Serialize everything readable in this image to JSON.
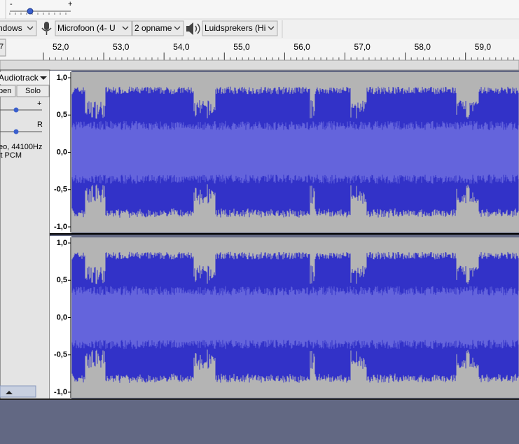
{
  "toolbar": {
    "slider_minus": "-",
    "slider_plus": "+",
    "host_dropdown": "ndows",
    "mic_dropdown": "Microfoon (4- U",
    "channels_dropdown": "2 opname",
    "speaker_dropdown": "Luidsprekers (Hi"
  },
  "ruler": {
    "left_label": "7",
    "ticks": [
      "52,0",
      "53,0",
      "54,0",
      "55,0",
      "56,0",
      "57,0",
      "58,0",
      "59,0"
    ]
  },
  "track": {
    "name": "Audiotrack",
    "mute": "pen",
    "solo": "Solo",
    "gain_plus": "+",
    "pan_right": "R",
    "info": [
      "eo, 44100Hz",
      "it PCM"
    ],
    "channels": [
      {
        "scale": [
          "1,0",
          "0,5",
          "0,0",
          "-0,5",
          "-1,0"
        ]
      },
      {
        "scale": [
          "1,0",
          "0,5",
          "0,0",
          "-0,5",
          "-1,0"
        ]
      }
    ]
  }
}
